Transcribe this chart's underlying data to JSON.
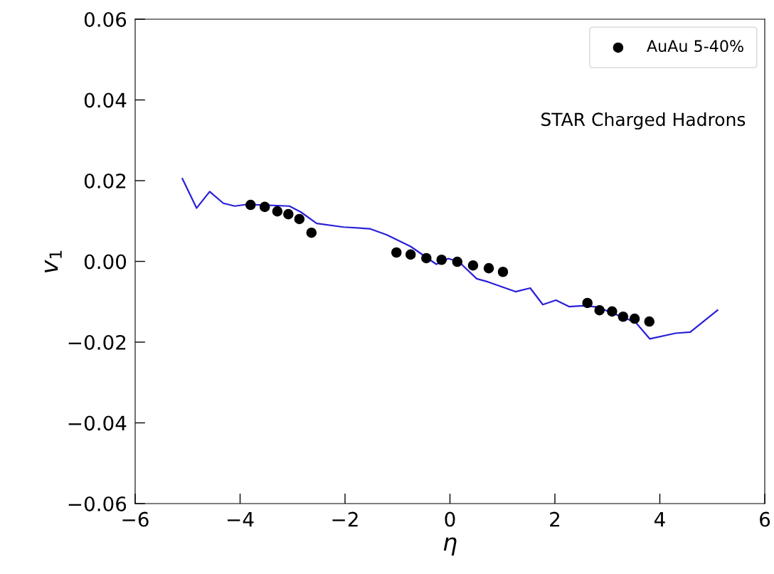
{
  "chart_data": {
    "type": "scatter",
    "xlabel": "η",
    "ylabel": "v$_{1}$",
    "annotations": [
      "STAR Charged Hadrons"
    ],
    "series": [
      {
        "name": "AuAu 5-40%",
        "color": "#000000",
        "marker": "circle",
        "x": [
          -3.8,
          -3.53,
          -3.29,
          -3.08,
          -2.87,
          -2.64,
          -1.02,
          -0.75,
          -0.45,
          -0.16,
          0.14,
          0.44,
          0.74,
          1.01,
          2.62,
          2.85,
          3.09,
          3.3,
          3.52,
          3.8
        ],
        "values": [
          0.014,
          0.0135,
          0.0124,
          0.0117,
          0.0105,
          0.0071,
          0.0022,
          0.0017,
          0.0008,
          0.0004,
          -0.0001,
          -0.001,
          -0.0017,
          -0.0026,
          -0.0103,
          -0.0121,
          -0.0124,
          -0.0137,
          -0.0142,
          -0.0149
        ]
      },
      {
        "type": "line",
        "color": "#2a1fd8",
        "line_style": "solid",
        "x": [
          -5.1,
          -4.83,
          -4.58,
          -4.32,
          -4.1,
          -3.88,
          -3.06,
          -2.84,
          -2.54,
          -2.03,
          -1.53,
          -1.21,
          -0.75,
          -0.26,
          -0.03,
          0.17,
          0.51,
          0.73,
          1.25,
          1.53,
          1.77,
          2.02,
          2.27,
          2.54,
          2.81,
          3.54,
          3.81,
          4.3,
          4.58,
          5.1
        ],
        "values": [
          0.0205,
          0.0132,
          0.0173,
          0.0144,
          0.0137,
          0.0141,
          0.0137,
          0.0122,
          0.0094,
          0.0085,
          0.0081,
          0.0066,
          0.0037,
          -0.0007,
          0.0007,
          -0.0001,
          -0.0043,
          -0.0051,
          -0.0075,
          -0.0066,
          -0.0107,
          -0.0096,
          -0.0112,
          -0.011,
          -0.0113,
          -0.0151,
          -0.0192,
          -0.0178,
          -0.0175,
          -0.0121
        ]
      }
    ],
    "xlim": [
      -6,
      6
    ],
    "xticks": [
      {
        "value": -6,
        "label": "−6"
      },
      {
        "value": -4,
        "label": "−4"
      },
      {
        "value": -2,
        "label": "−2"
      },
      0,
      2,
      4,
      6
    ],
    "ylim": [
      -0.06,
      0.06
    ],
    "yticks": [
      {
        "value": -0.06,
        "label": "−0.06"
      },
      {
        "value": -0.04,
        "label": "−0.04"
      },
      {
        "value": -0.02,
        "label": "−0.02"
      },
      {
        "value": 0,
        "label": "0.00"
      },
      0.02,
      0.04,
      0.06
    ],
    "legend": "top right",
    "grid": false
  }
}
